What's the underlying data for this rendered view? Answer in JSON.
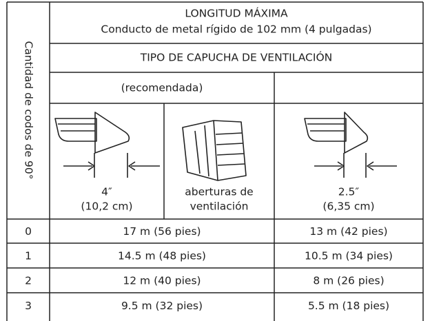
{
  "side_header": "Cantidad de codos de 90°",
  "header": {
    "title": "LONGITUD MÁXIMA",
    "subtitle": "Conducto de metal rígido de 102 mm (4 pulgadas)"
  },
  "hood_type": "TIPO DE CAPUCHA DE VENTILACIÓN",
  "recommended": "(recomendada)",
  "hoods": [
    {
      "lines": [
        "4″",
        "(10,2 cm)"
      ]
    },
    {
      "lines": [
        "aberturas de",
        "ventilación"
      ]
    },
    {
      "lines": [
        "2.5″",
        "(6,35 cm)"
      ]
    }
  ],
  "table": {
    "rows": [
      [
        "0",
        "17 m (56 pies)",
        "13 m (42 pies)"
      ],
      [
        "1",
        "14.5 m (48 pies)",
        "10.5 m (34 pies)"
      ],
      [
        "2",
        "12 m (40 pies)",
        "8 m (26 pies)"
      ],
      [
        "3",
        "9.5 m (32 pies)",
        "5.5 m (18 pies)"
      ]
    ]
  }
}
